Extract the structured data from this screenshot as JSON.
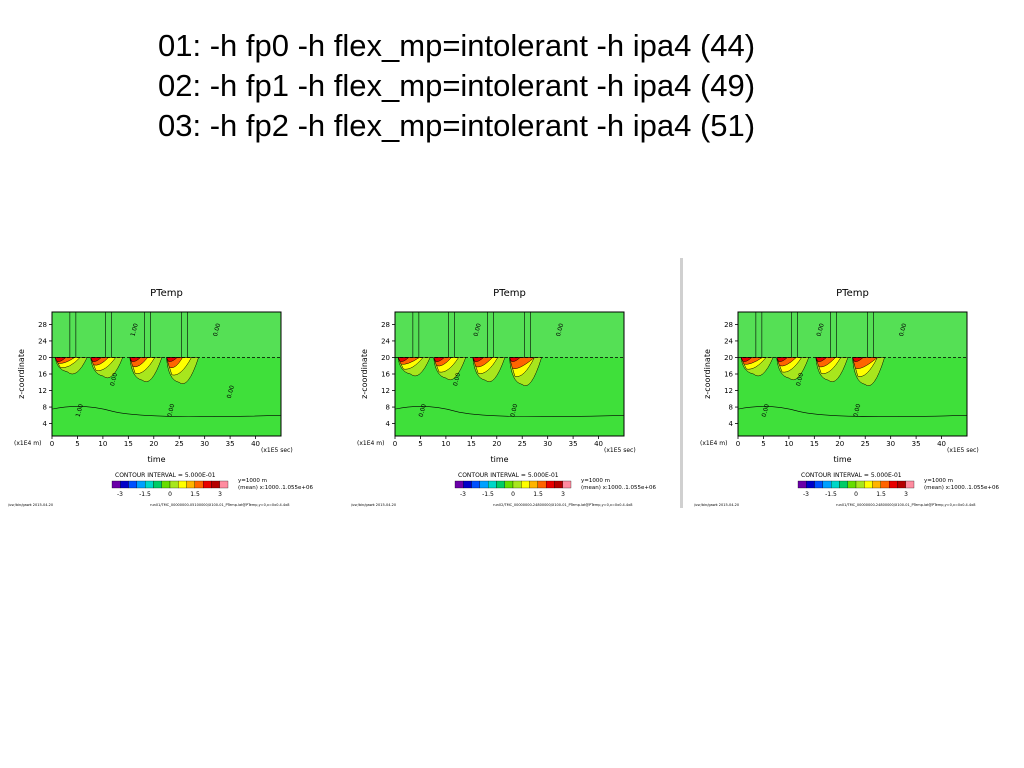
{
  "slide": {
    "lines": [
      "01: -h fp0 -h flex_mp=intolerant -h ipa4 (44)",
      "02: -h fp1 -h flex_mp=intolerant -h ipa4 (49)",
      "03: -h fp2 -h flex_mp=intolerant -h ipa4 (51)"
    ]
  },
  "colors": {
    "background": "#ffffff",
    "field_main": "#3fe03a",
    "field_upper": "#55e055"
  },
  "colorbar_levels": [
    "#6a00a8",
    "#0000c8",
    "#0050ff",
    "#00a0ff",
    "#00d7c8",
    "#00cc66",
    "#66dd00",
    "#a8e61d",
    "#ffff00",
    "#ffb400",
    "#ff6400",
    "#e80000",
    "#b40000",
    "#ff8ca0"
  ],
  "chart_data": [
    {
      "type": "heatmap",
      "title": "PTemp",
      "xlabel": "time",
      "x_unit": "(x1E5 sec)",
      "y_unit": "(x1E4 m)",
      "ylabel": "z-coordinate",
      "x_ticks": [
        "0",
        "5",
        "10",
        "15",
        "20",
        "25",
        "30",
        "35",
        "40"
      ],
      "y_ticks": [
        "4",
        "8",
        "12",
        "16",
        "20",
        "24",
        "28"
      ],
      "xlim": [
        0,
        45
      ],
      "ylim": [
        1,
        31
      ],
      "contour_interval": "CONTOUR INTERVAL = 5.000E-01",
      "colorbar_ticks": [
        "-3",
        "-1.5",
        "0",
        "1.5",
        "3"
      ],
      "info_y": "y=1000 m",
      "info_x": "(mean) x:1000..1.055e+06",
      "footer_left": "/usr/bin/gawk  2015-04-20",
      "footer_right": "run01/TMC_00000000-05100000/X100-01_PTemp.lat@PTemp,y=0,x=0x0.4.4x8",
      "contour_labels": [
        "1.00",
        "0.00",
        "0.00",
        "1.00",
        "0.00",
        "0.00"
      ],
      "inversion_level": 20,
      "cold_pools": [
        {
          "x": 0.6,
          "depth": 3.5,
          "hot": 0.55
        },
        {
          "x": 7.6,
          "depth": 4.5,
          "hot": 0.5
        },
        {
          "x": 15.3,
          "depth": 5.5,
          "hot": 0.5
        },
        {
          "x": 22.5,
          "depth": 6,
          "hot": 0.45
        }
      ]
    },
    {
      "type": "heatmap",
      "title": "PTemp",
      "xlabel": "time",
      "x_unit": "(x1E5 sec)",
      "y_unit": "(x1E4 m)",
      "ylabel": "z-coordinate",
      "x_ticks": [
        "0",
        "5",
        "10",
        "15",
        "20",
        "25",
        "30",
        "35",
        "40"
      ],
      "y_ticks": [
        "4",
        "8",
        "12",
        "16",
        "20",
        "24",
        "28"
      ],
      "xlim": [
        0,
        45
      ],
      "ylim": [
        1,
        31
      ],
      "contour_interval": "CONTOUR INTERVAL = 5.000E-01",
      "colorbar_ticks": [
        "-3",
        "-1.5",
        "0",
        "1.5",
        "3"
      ],
      "info_y": "y=1000 m",
      "info_x": "(mean) x:1000..1.055e+06",
      "footer_left": "/usr/bin/gawk  2015-04-20",
      "footer_right": "run02/TMC_00000000-24800000/X100-01_PTemp.lat@PTemp,y=0,x=0x0.4.4x8",
      "contour_labels": [
        "0.00",
        "0.00",
        "0.00",
        "0.00",
        "0.00"
      ],
      "inversion_level": 20,
      "cold_pools": [
        {
          "x": 0.6,
          "depth": 4,
          "hot": 0.6
        },
        {
          "x": 7.6,
          "depth": 5,
          "hot": 0.5
        },
        {
          "x": 15.3,
          "depth": 5.5,
          "hot": 0.55
        },
        {
          "x": 22.5,
          "depth": 6.5,
          "hot": 0.7
        }
      ]
    },
    {
      "type": "heatmap",
      "title": "PTemp",
      "xlabel": "time",
      "x_unit": "(x1E5 sec)",
      "y_unit": "(x1E4 m)",
      "ylabel": "z-coordinate",
      "x_ticks": [
        "0",
        "5",
        "10",
        "15",
        "20",
        "25",
        "30",
        "35",
        "40"
      ],
      "y_ticks": [
        "4",
        "8",
        "12",
        "16",
        "20",
        "24",
        "28"
      ],
      "xlim": [
        0,
        45
      ],
      "ylim": [
        1,
        31
      ],
      "contour_interval": "CONTOUR INTERVAL = 5.000E-01",
      "colorbar_ticks": [
        "-3",
        "-1.5",
        "0",
        "1.5",
        "3"
      ],
      "info_y": "y=1000 m",
      "info_x": "(mean) x:1000..1.055e+06",
      "footer_left": "/usr/bin/gawk  2015-04-20",
      "footer_right": "run01/TMC_00000000-24800000/X100-01_PTemp.lat@PTemp,y=0,x=0x0.4.4x8",
      "contour_labels": [
        "0.00",
        "0.00",
        "0.00",
        "0.00",
        "0.00"
      ],
      "inversion_level": 20,
      "cold_pools": [
        {
          "x": 0.6,
          "depth": 4,
          "hot": 0.6
        },
        {
          "x": 7.6,
          "depth": 5,
          "hot": 0.55
        },
        {
          "x": 15.3,
          "depth": 5.5,
          "hot": 0.55
        },
        {
          "x": 22.5,
          "depth": 6.5,
          "hot": 0.7
        }
      ]
    }
  ]
}
